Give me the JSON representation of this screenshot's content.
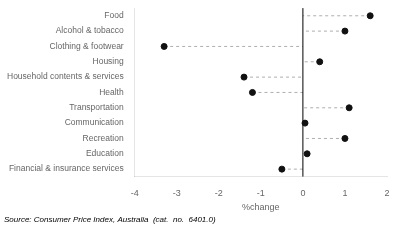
{
  "chart_data": {
    "type": "lollipop",
    "orientation": "horizontal",
    "categories": [
      "Food",
      "Alcohol & tobacco",
      "Clothing & footwear",
      "Housing",
      "Household contents & services",
      "Health",
      "Transportation",
      "Communication",
      "Recreation",
      "Education",
      "Financial & insurance services"
    ],
    "values": [
      1.6,
      1.0,
      -3.3,
      0.4,
      -1.4,
      -1.2,
      1.1,
      0.05,
      1.0,
      0.1,
      -0.5
    ],
    "color": "#111111",
    "line_style": "dashed",
    "marker": "circle",
    "xlim": [
      -4,
      2
    ],
    "xticks": [
      -4,
      -3,
      -2,
      -1,
      0,
      1,
      2
    ],
    "xlabel": "%change",
    "grid": false,
    "annotations": [
      "Source: Consumer Price Index, Australia  (cat.  no.  6401.0)"
    ]
  }
}
